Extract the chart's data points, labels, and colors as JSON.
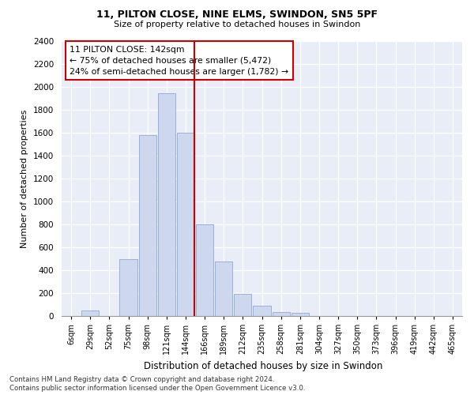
{
  "title1": "11, PILTON CLOSE, NINE ELMS, SWINDON, SN5 5PF",
  "title2": "Size of property relative to detached houses in Swindon",
  "xlabel": "Distribution of detached houses by size in Swindon",
  "ylabel": "Number of detached properties",
  "bar_color": "#cdd8ef",
  "bar_edge_color": "#9ab0d8",
  "categories": [
    "6sqm",
    "29sqm",
    "52sqm",
    "75sqm",
    "98sqm",
    "121sqm",
    "144sqm",
    "166sqm",
    "189sqm",
    "212sqm",
    "235sqm",
    "258sqm",
    "281sqm",
    "304sqm",
    "327sqm",
    "350sqm",
    "373sqm",
    "396sqm",
    "419sqm",
    "442sqm",
    "465sqm"
  ],
  "values": [
    0,
    50,
    0,
    500,
    1580,
    1950,
    1600,
    800,
    480,
    190,
    90,
    35,
    25,
    0,
    0,
    0,
    0,
    0,
    0,
    0,
    0
  ],
  "ylim": [
    0,
    2400
  ],
  "yticks": [
    0,
    200,
    400,
    600,
    800,
    1000,
    1200,
    1400,
    1600,
    1800,
    2000,
    2200,
    2400
  ],
  "vline_color": "#cc0000",
  "annotation_title": "11 PILTON CLOSE: 142sqm",
  "annotation_line1": "← 75% of detached houses are smaller (5,472)",
  "annotation_line2": "24% of semi-detached houses are larger (1,782) →",
  "annotation_box_color": "#cc0000",
  "footnote1": "Contains HM Land Registry data © Crown copyright and database right 2024.",
  "footnote2": "Contains public sector information licensed under the Open Government Licence v3.0.",
  "plot_bg": "#e8edf8"
}
